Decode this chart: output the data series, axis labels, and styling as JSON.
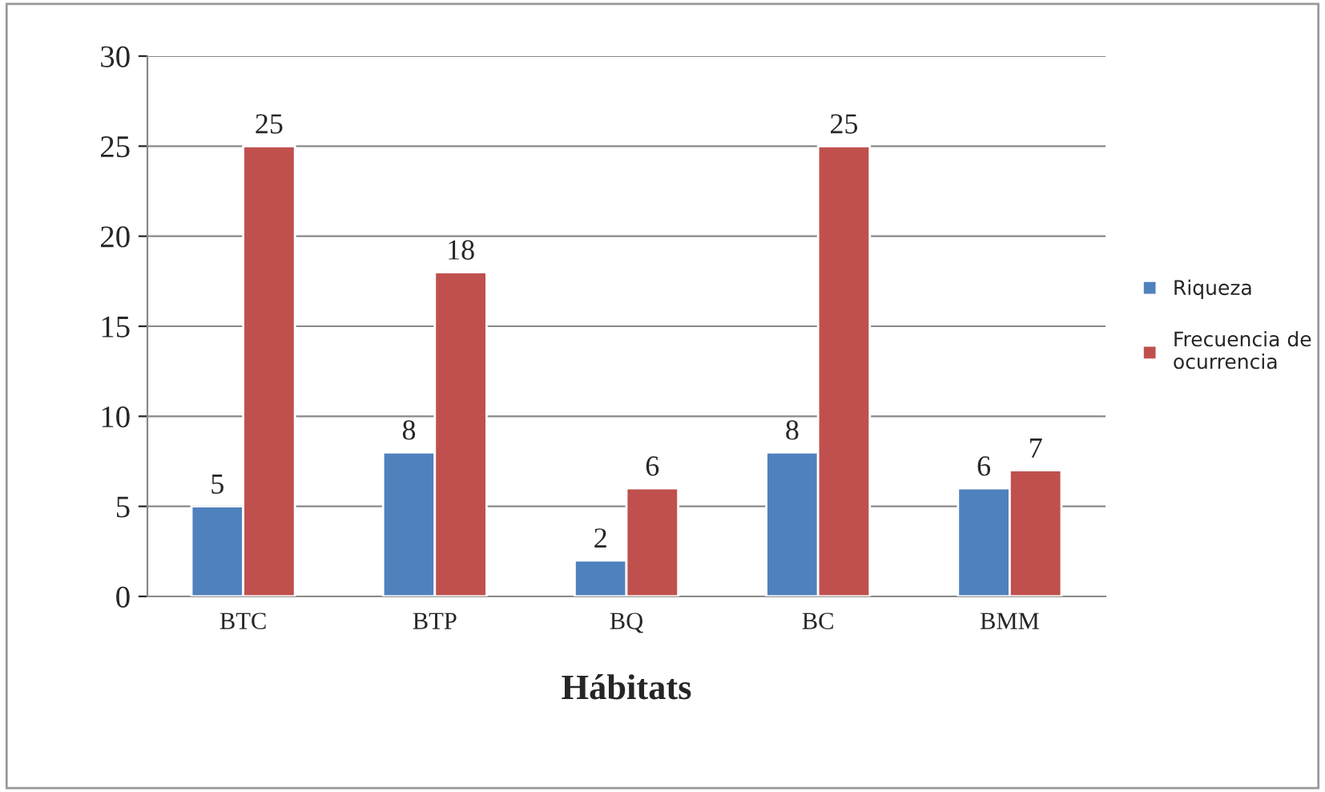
{
  "chart_data": {
    "type": "bar",
    "xlabel": "Hábitats",
    "categories": [
      "BTC",
      "BTP",
      "BQ",
      "BC",
      "BMM"
    ],
    "series": [
      {
        "name": "Riqueza",
        "color": "#4f81bd",
        "values": [
          5,
          8,
          2,
          8,
          6
        ]
      },
      {
        "name": "Frecuencia de ocurrencia",
        "color": "#c0504d",
        "values": [
          25,
          18,
          6,
          25,
          7
        ]
      }
    ],
    "ylim": [
      0,
      30
    ],
    "yticks": [
      0,
      5,
      10,
      15,
      20,
      25,
      30
    ],
    "grid": "y",
    "legend": "right",
    "data_labels": true
  }
}
